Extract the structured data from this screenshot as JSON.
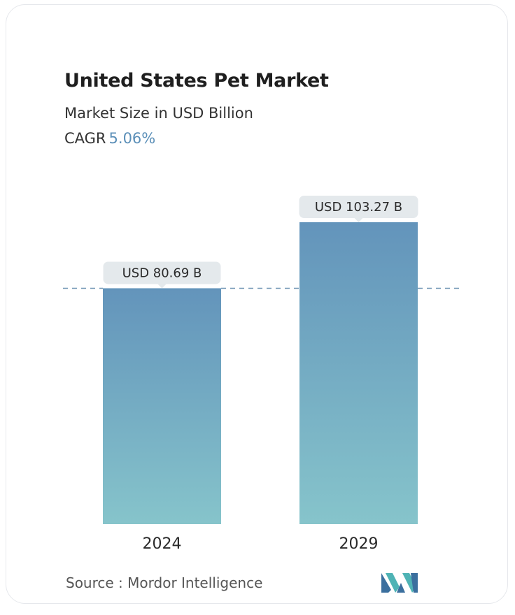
{
  "header": {
    "title": "United States Pet Market",
    "subtitle": "Market Size in USD Billion",
    "cagr_label": "CAGR",
    "cagr_value": "5.06%"
  },
  "footer": {
    "source": "Source :  Mordor Intelligence",
    "logo_icon": "mordor-intelligence-logo"
  },
  "colors": {
    "bar_top": "#6394bb",
    "bar_bottom": "#86c4cb",
    "accent": "#5b8fb8",
    "label_bg": "#e4e9ec",
    "dashed_line": "#6f94b3"
  },
  "chart_data": {
    "type": "bar",
    "categories": [
      "2024",
      "2029"
    ],
    "values": [
      80.69,
      103.27
    ],
    "data_labels": [
      "USD 80.69 B",
      "USD 103.27 B"
    ],
    "title": "United States Pet Market",
    "subtitle": "Market Size in USD Billion",
    "reference_line": 80.69,
    "ylim": [
      0,
      103.27
    ],
    "grid": false,
    "legend": "none"
  }
}
